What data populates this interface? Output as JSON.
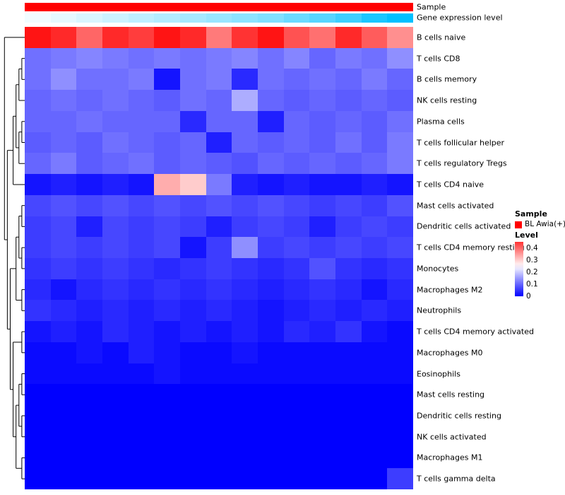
{
  "annotations": {
    "sample_label": "Sample",
    "expression_label": "Gene expression level",
    "sample_color": "#FF0000",
    "expression_color_low": "#FFFFFF",
    "expression_color_high": "#00C0FF",
    "expression_values": [
      0.05,
      0.1,
      0.15,
      0.2,
      0.25,
      0.3,
      0.35,
      0.4,
      0.45,
      0.5,
      0.58,
      0.66,
      0.76,
      0.9,
      1.0
    ]
  },
  "legend_sample": {
    "title": "Sample",
    "items": [
      {
        "label": "BL Awia(+)",
        "color": "#FF0000"
      }
    ]
  },
  "legend_level": {
    "title": "Level",
    "ticks": [
      "0.4",
      "0.3",
      "0.2",
      "0.1",
      "0"
    ],
    "tick_values": [
      0.4,
      0.3,
      0.2,
      0.1,
      0
    ],
    "bar_top_value": 0.45
  },
  "chart_data": {
    "type": "heatmap",
    "title": "",
    "legend_position": "right",
    "column_annotation_rows": [
      "Sample",
      "Gene expression level"
    ],
    "row_labels": [
      "B cells naive",
      "T cells CD8",
      "B cells memory",
      "NK cells resting",
      "Plasma cells",
      "T cells follicular helper",
      "T cells regulatory  Tregs",
      "T cells CD4 naive",
      "Mast cells activated",
      "Dendritic cells activated",
      "T cells CD4 memory resting",
      "Monocytes",
      "Macrophages M2",
      "Neutrophils",
      "T cells CD4 memory activated",
      "Macrophages M0",
      "Eosinophils",
      "Mast cells resting",
      "Dendritic cells resting",
      "NK cells activated",
      "Macrophages M1",
      "T cells gamma delta"
    ],
    "n_columns": 15,
    "value_range": [
      0,
      0.5
    ],
    "colormap": {
      "low": "#0000FF",
      "mid": "#FFFFFF",
      "high": "#FF0000",
      "mid_value": 0.25
    },
    "values": [
      [
        0.48,
        0.46,
        0.4,
        0.46,
        0.44,
        0.48,
        0.46,
        0.38,
        0.45,
        0.48,
        0.42,
        0.39,
        0.46,
        0.41,
        0.36
      ],
      [
        0.11,
        0.12,
        0.13,
        0.12,
        0.11,
        0.12,
        0.11,
        0.12,
        0.13,
        0.11,
        0.13,
        0.1,
        0.12,
        0.11,
        0.14
      ],
      [
        0.11,
        0.14,
        0.11,
        0.11,
        0.12,
        0.02,
        0.11,
        0.12,
        0.04,
        0.11,
        0.1,
        0.11,
        0.1,
        0.12,
        0.1
      ],
      [
        0.1,
        0.11,
        0.1,
        0.11,
        0.1,
        0.09,
        0.11,
        0.1,
        0.17,
        0.1,
        0.09,
        0.1,
        0.09,
        0.1,
        0.09
      ],
      [
        0.1,
        0.1,
        0.11,
        0.1,
        0.1,
        0.1,
        0.04,
        0.1,
        0.1,
        0.03,
        0.1,
        0.09,
        0.1,
        0.09,
        0.11
      ],
      [
        0.09,
        0.1,
        0.09,
        0.11,
        0.1,
        0.09,
        0.1,
        0.03,
        0.1,
        0.09,
        0.1,
        0.09,
        0.11,
        0.09,
        0.12
      ],
      [
        0.1,
        0.12,
        0.09,
        0.1,
        0.11,
        0.09,
        0.1,
        0.09,
        0.08,
        0.1,
        0.09,
        0.1,
        0.09,
        0.1,
        0.12
      ],
      [
        0.02,
        0.03,
        0.02,
        0.03,
        0.02,
        0.33,
        0.3,
        0.12,
        0.03,
        0.02,
        0.03,
        0.02,
        0.02,
        0.03,
        0.02
      ],
      [
        0.07,
        0.08,
        0.07,
        0.08,
        0.07,
        0.08,
        0.07,
        0.08,
        0.07,
        0.08,
        0.07,
        0.06,
        0.07,
        0.06,
        0.08
      ],
      [
        0.06,
        0.07,
        0.03,
        0.07,
        0.06,
        0.07,
        0.06,
        0.03,
        0.06,
        0.07,
        0.06,
        0.03,
        0.06,
        0.07,
        0.06
      ],
      [
        0.06,
        0.07,
        0.06,
        0.07,
        0.06,
        0.07,
        0.02,
        0.06,
        0.14,
        0.06,
        0.07,
        0.06,
        0.07,
        0.06,
        0.07
      ],
      [
        0.05,
        0.06,
        0.05,
        0.06,
        0.05,
        0.04,
        0.05,
        0.06,
        0.05,
        0.04,
        0.05,
        0.08,
        0.05,
        0.04,
        0.05
      ],
      [
        0.04,
        0.02,
        0.04,
        0.05,
        0.04,
        0.05,
        0.04,
        0.05,
        0.04,
        0.03,
        0.04,
        0.05,
        0.04,
        0.02,
        0.04
      ],
      [
        0.05,
        0.04,
        0.03,
        0.04,
        0.03,
        0.04,
        0.03,
        0.04,
        0.03,
        0.02,
        0.03,
        0.04,
        0.03,
        0.04,
        0.03
      ],
      [
        0.02,
        0.03,
        0.02,
        0.04,
        0.03,
        0.02,
        0.03,
        0.02,
        0.03,
        0.02,
        0.04,
        0.03,
        0.05,
        0.02,
        0.01
      ],
      [
        0.01,
        0.01,
        0.02,
        0.01,
        0.03,
        0.02,
        0.01,
        0.01,
        0.02,
        0.01,
        0.01,
        0.01,
        0.01,
        0.01,
        0.01
      ],
      [
        0.01,
        0.01,
        0.01,
        0.01,
        0.01,
        0.02,
        0.01,
        0.01,
        0.01,
        0.01,
        0.01,
        0.01,
        0.01,
        0.01,
        0.01
      ],
      [
        0,
        0,
        0,
        0,
        0,
        0,
        0,
        0,
        0,
        0,
        0,
        0,
        0,
        0,
        0
      ],
      [
        0,
        0,
        0,
        0,
        0,
        0,
        0,
        0,
        0,
        0,
        0,
        0,
        0,
        0,
        0
      ],
      [
        0,
        0,
        0,
        0,
        0,
        0,
        0,
        0,
        0,
        0,
        0,
        0,
        0,
        0,
        0
      ],
      [
        0,
        0,
        0,
        0,
        0,
        0,
        0,
        0,
        0,
        0,
        0,
        0,
        0,
        0,
        0
      ],
      [
        0,
        0,
        0,
        0,
        0,
        0,
        0,
        0,
        0,
        0,
        0,
        0,
        0,
        0,
        0.06
      ]
    ]
  }
}
